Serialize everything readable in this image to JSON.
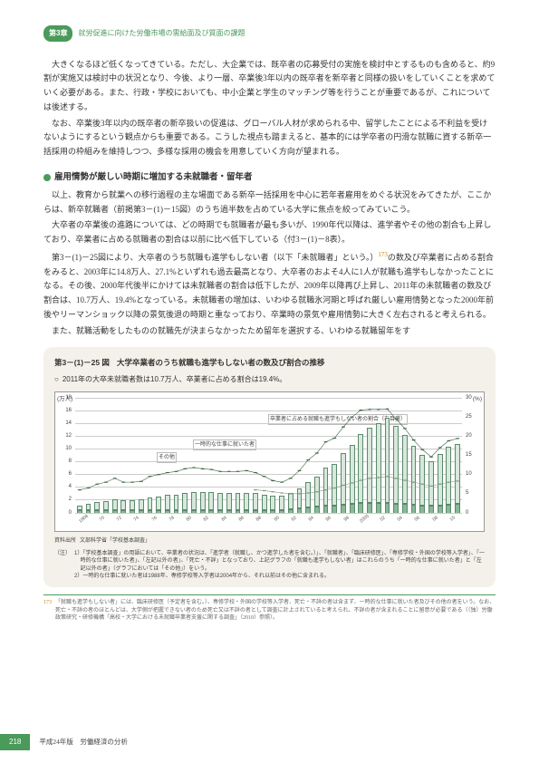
{
  "header": {
    "chapter_badge": "第3章",
    "title": "就労促進に向けた労働市場の需給面及び質面の課題"
  },
  "paragraphs": {
    "p1": "大きくなるほど低くなってきている。ただし、大企業では、既卒者の応募受付の実施を検討中とするものも含めると、約9割が実施又は検討中の状況となり、今後、より一層、卒業後3年以内の既卒者を新卒者と同様の扱いをしていくことを求めていく必要がある。また、行政・学校においても、中小企業と学生のマッチング等を行うことが重要であるが、これについては後述する。",
    "p2": "なお、卒業後3年以内の既卒者の新卒扱いの促進は、グローバル人材が求められる中、留学したことによる不利益を受けないようにするという観点からも重要である。こうした視点も踏まえると、基本的には学卒者の円滑な就職に資する新卒一括採用の枠組みを維持しつつ、多様な採用の機会を用意していく方向が望まれる。",
    "subhead": "雇用情勢が厳しい時期に増加する未就職者・留年者",
    "p3": "以上、教育から就業への移行過程の主な場面である新卒一括採用を中心に若年者雇用をめぐる状況をみてきたが、ここからは、新卒就職者（前掲第3－(1)－15図）のうち過半数を占めている大学に焦点を絞ってみていこう。",
    "p4a": "大卒者の卒業後の進路については、どの時期でも就職者が最も多いが、1990年代以降は、進学者やその他の割合も上昇しており、卒業者に占める就職者の割合は以前に比べ低下している（付3－(1)－8表）。",
    "p4b_pre": "第3－(1)－25図により、大卒者のうち就職も進学もしない者（以下「未就職者」という。）",
    "p4b_ref": "173",
    "p4b_post": "の数及び卒業者に占める割合をみると、2003年に14.8万人、27.1%といずれも過去最高となり、大卒者のおよそ4人に1人が就職も進学もしなかったことになる。その後、2000年代後半にかけては未就職者の割合は低下したが、2009年以降再び上昇し、2011年の未就職者の数及び割合は、10.7万人、19.4%となっている。未就職者の増加は、いわゆる就職氷河期と呼ばれ厳しい雇用情勢となった2000年前後やリーマンショック以降の景気後退の時期と重なっており、卒業時の景気や雇用情勢に大きく左右されると考えられる。",
    "p5": "また、就職活動をしたものの就職先が決まらなかったため留年を選択する、いわゆる就職留年をす"
  },
  "chart": {
    "fig_number": "第3－(1)－25 図",
    "fig_title": "大学卒業者のうち就職も進学もしない者の数及び割合の推移",
    "subtitle": "2011年の大卒未就職者数は10.7万人、卒業者に占める割合は19.4%。",
    "y_left_label": "(万人)",
    "y_right_label": "(%)",
    "y_left_ticks": [
      0,
      2,
      4,
      6,
      8,
      10,
      12,
      14,
      16,
      18
    ],
    "y_right_ticks": [
      0,
      5,
      10,
      15,
      20,
      25,
      30
    ],
    "years": [
      "1968",
      "69",
      "70",
      "71",
      "72",
      "73",
      "74",
      "75",
      "76",
      "77",
      "78",
      "79",
      "80",
      "81",
      "82",
      "83",
      "84",
      "85",
      "86",
      "87",
      "88",
      "89",
      "90",
      "91",
      "92",
      "93",
      "94",
      "95",
      "96",
      "97",
      "98",
      "99",
      "2000",
      "01",
      "02",
      "03",
      "04",
      "05",
      "06",
      "07",
      "08",
      "09",
      "10",
      "2011"
    ],
    "bar_values": [
      1.1,
      1.3,
      1.6,
      1.8,
      2.1,
      1.9,
      1.9,
      2.0,
      2.4,
      2.5,
      2.7,
      2.8,
      3.1,
      3.2,
      3.2,
      3.2,
      3.0,
      3.0,
      3.0,
      3.1,
      3.0,
      2.8,
      2.6,
      2.6,
      3.0,
      3.7,
      4.8,
      5.6,
      7.0,
      7.6,
      9.3,
      10.6,
      12.2,
      13.2,
      13.9,
      14.8,
      13.5,
      12.1,
      10.4,
      9.0,
      8.0,
      9.2,
      10.3,
      10.7
    ],
    "other_values": [
      0.3,
      0.3,
      0.3,
      0.3,
      0.3,
      0.3,
      0.3,
      0.3,
      0.3,
      0.3,
      0.4,
      0.4,
      0.4,
      0.4,
      0.4,
      0.4,
      0.4,
      0.4,
      0.4,
      0.4,
      0.4,
      0.4,
      0.4,
      0.4,
      0.5,
      0.6,
      0.8,
      0.9,
      1.0,
      1.1,
      1.2,
      1.3,
      1.5,
      1.5,
      1.5,
      1.5,
      1.4,
      1.3,
      1.2,
      1.1,
      1.0,
      1.1,
      1.2,
      1.3
    ],
    "line1_pct": [
      6.0,
      6.5,
      7.5,
      8.0,
      9.0,
      8.0,
      8.0,
      8.2,
      9.5,
      10.0,
      10.5,
      10.8,
      11.5,
      11.8,
      11.5,
      11.3,
      10.8,
      10.8,
      10.8,
      11.0,
      10.5,
      9.5,
      8.4,
      8.0,
      9.0,
      11.0,
      13.8,
      15.6,
      18.5,
      19.5,
      22.4,
      25.0,
      26.8,
      27.0,
      27.0,
      27.1,
      24.5,
      22.0,
      19.0,
      16.5,
      14.6,
      17.0,
      18.8,
      19.4
    ],
    "line2_pct": [
      null,
      null,
      null,
      null,
      null,
      null,
      null,
      null,
      null,
      null,
      null,
      null,
      null,
      null,
      null,
      null,
      null,
      null,
      null,
      null,
      6.0,
      5.8,
      5.5,
      5.2,
      5.0,
      5.0,
      5.2,
      5.5,
      6.0,
      6.5,
      7.2,
      7.8,
      8.5,
      9.0,
      9.2,
      9.5,
      9.0,
      8.5,
      8.0,
      7.5,
      7.0,
      7.5,
      8.0,
      8.3
    ],
    "annot1": "卒業者に占める就職も進学もしない者の割合（右目盛）",
    "annot2": "一時的な仕事に就いた者",
    "annot3": "その他",
    "source_label": "資料出所",
    "source_text": "文部科学省「学校基本調査」",
    "notes_label": "（注）",
    "note1": "1）「学校基本調査」の用語において、卒業者の状況は、「進学者（就職し、かつ進学した者を含む。）」、「就職者」、「臨床研修医」、「専修学校・外国の学校等入学者」、「一時的な仕事に就いた者」、「左記以外の者」、「死亡・不詳」となっており、上記グラフの「就職も進学もしない者」はこれらのうち「一時的な仕事に就いた者」と「左記以外の者」（グラフにおいては「その他」）をいう。",
    "note2": "2）一時的な仕事に就いた者は1988年、専修学校等入学者は2004年から、それ以前はその他に含まれる。",
    "colors": {
      "bar_fill": "#d8e8dc",
      "bar_border": "#5a8a6a",
      "other_fill": "#8ab89a",
      "line1": "#3c6540",
      "line2": "#7a9c7e",
      "grid": "#cccccc",
      "panel_bg": "#f4f1ea"
    }
  },
  "footnote": {
    "num": "173",
    "text": "「就職も進学もしない者」には、臨床研修医（予定者を含む。）、専修学校・外国の学校等入学者、死亡・不詳の者は含まず、一時的な仕事に就いた者及びその他の者をいう。なお、死亡・不詳の者のほとんどは、大学側が把握できない者のため死亡又は不詳の者として調査に計上されていると考えられ、不詳の者が含まれることに留意が必要である（（独）労働政策研究・研修機構「高校・大学における未就職卒業者支援に関する調査」（2010）参照）。"
  },
  "footer": {
    "page": "218",
    "info": "平成24年版　労働経済の分析"
  }
}
